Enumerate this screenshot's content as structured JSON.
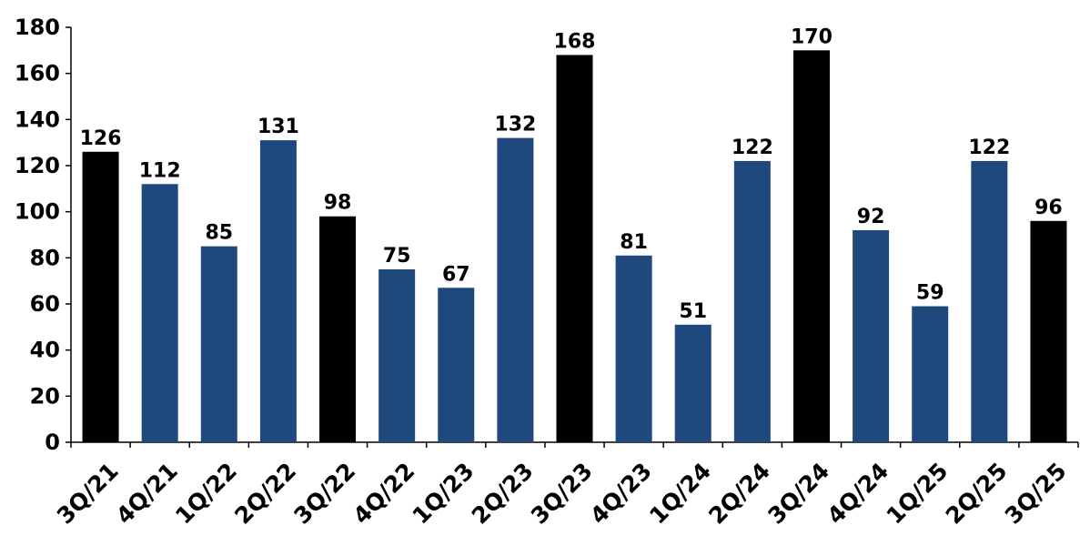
{
  "chart_data": {
    "type": "bar",
    "title": "",
    "xlabel": "",
    "ylabel": "",
    "ylim": [
      0,
      180
    ],
    "yticks": [
      0,
      20,
      40,
      60,
      80,
      100,
      120,
      140,
      160,
      180
    ],
    "grid": false,
    "legend": "none",
    "categories": [
      "3Q/21",
      "4Q/21",
      "1Q/22",
      "2Q/22",
      "3Q/22",
      "4Q/22",
      "1Q/23",
      "2Q/23",
      "3Q/23",
      "4Q/23",
      "1Q/24",
      "2Q/24",
      "3Q/24",
      "4Q/24",
      "1Q/25",
      "2Q/25",
      "3Q/25"
    ],
    "values": [
      126,
      112,
      85,
      131,
      98,
      75,
      67,
      132,
      168,
      81,
      51,
      122,
      170,
      92,
      59,
      122,
      96
    ],
    "highlighted": [
      true,
      false,
      false,
      false,
      true,
      false,
      false,
      false,
      true,
      false,
      false,
      false,
      true,
      false,
      false,
      false,
      true
    ],
    "colors": {
      "highlight": "#000000",
      "default": "#1f497d",
      "axis": "#000000"
    }
  }
}
